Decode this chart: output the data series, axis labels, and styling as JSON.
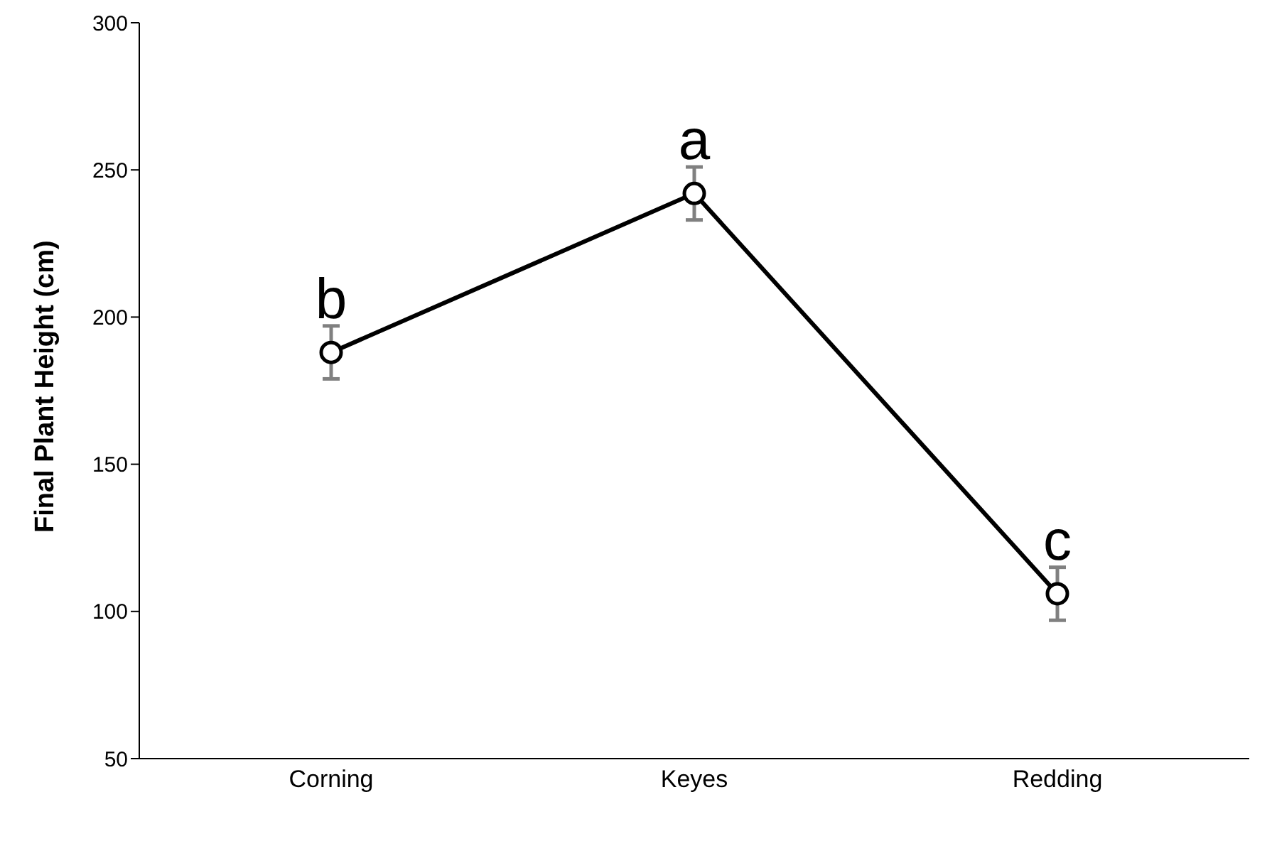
{
  "chart_data": {
    "type": "line",
    "ylabel": "Final Plant Height (cm)",
    "categories": [
      "Corning",
      "Keyes",
      "Redding"
    ],
    "series": [
      {
        "color": "#000000",
        "values": [
          188,
          242,
          106
        ],
        "errors": [
          9,
          9,
          9
        ]
      }
    ],
    "ylim": [
      50,
      300
    ],
    "yticks": [
      50,
      100,
      150,
      200,
      250,
      300
    ],
    "grid": false,
    "legend": false,
    "marker": "circle",
    "line_style": "solid",
    "annotations": [
      {
        "text": "b",
        "x": "Corning",
        "y": 188
      },
      {
        "text": "a",
        "x": "Keyes",
        "y": 242
      },
      {
        "text": "c",
        "x": "Redding",
        "y": 106
      }
    ]
  }
}
